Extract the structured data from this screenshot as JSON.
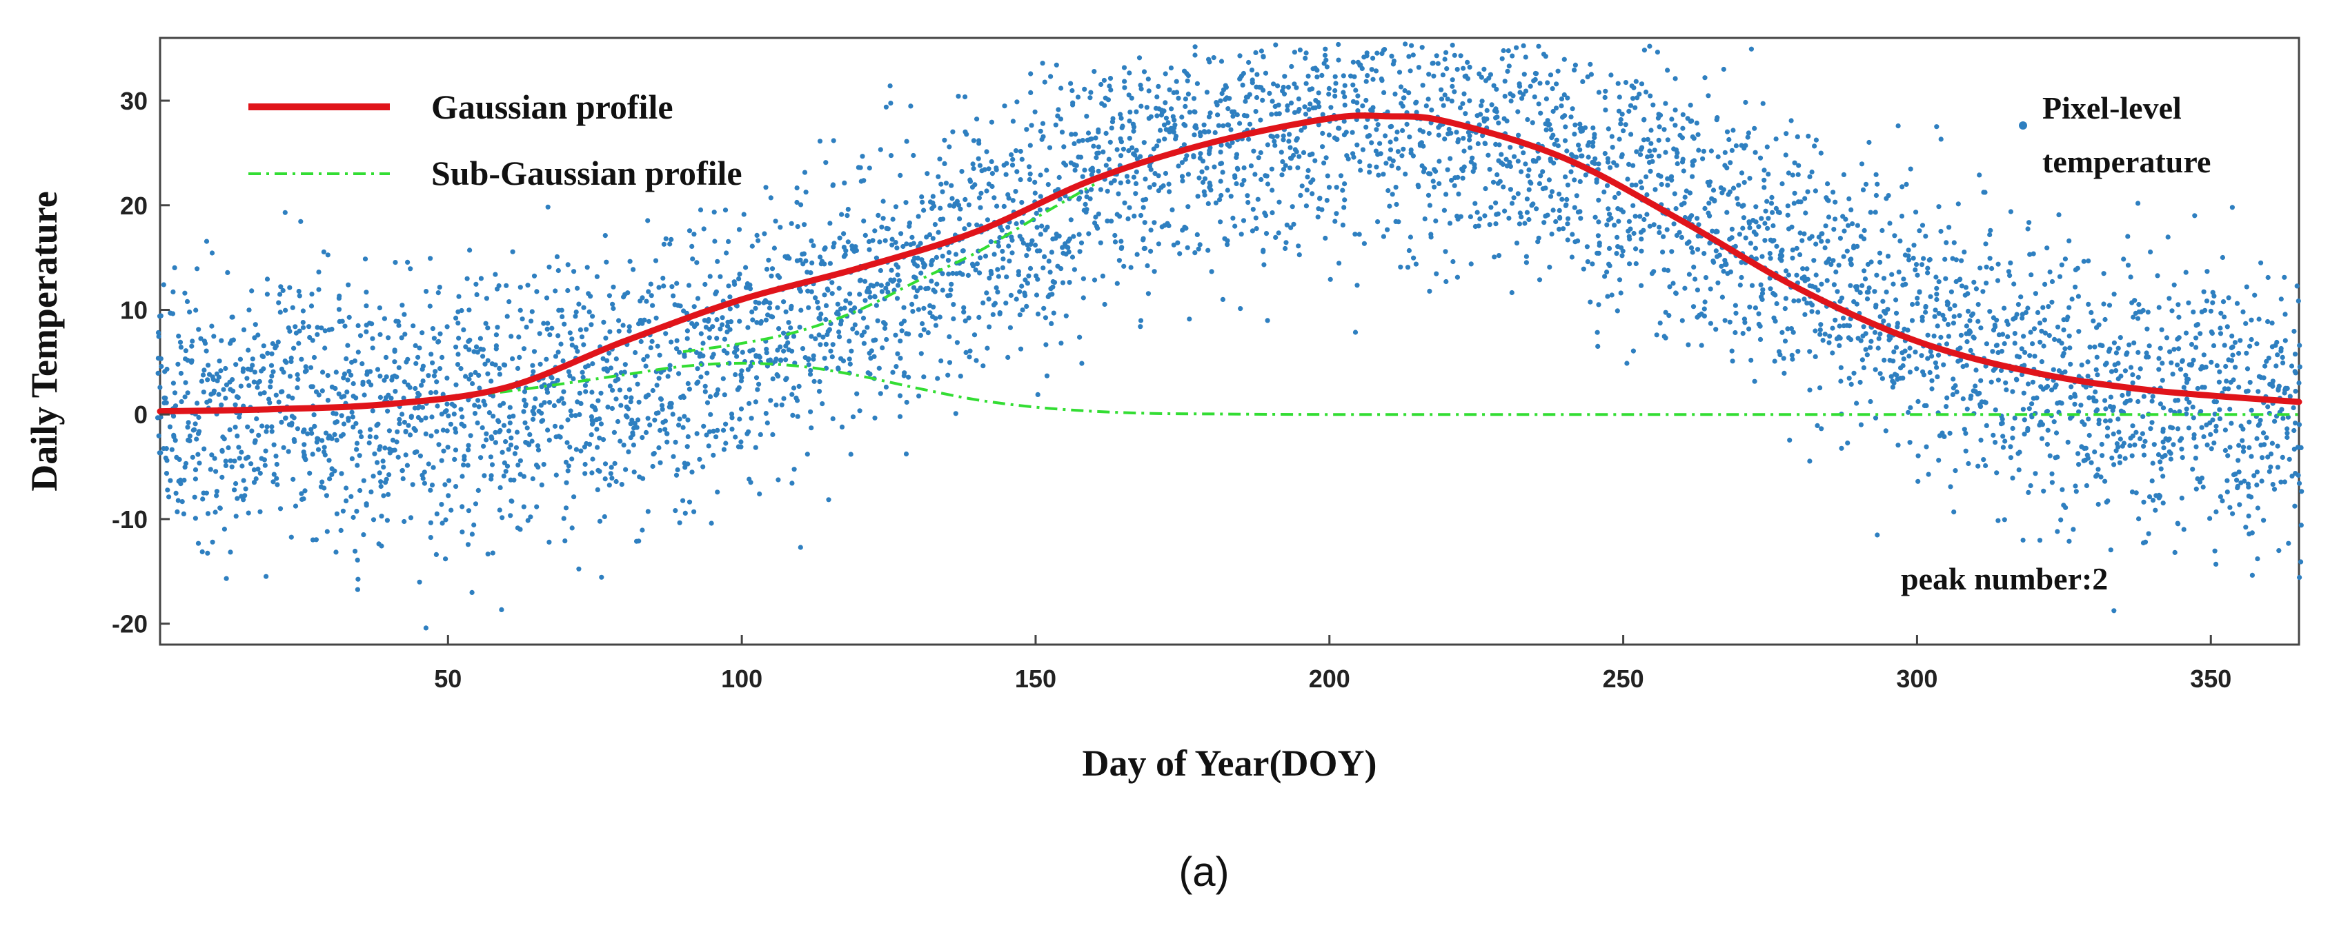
{
  "chart_data": {
    "type": "scatter",
    "title": "",
    "xlabel": "Day of Year(DOY)",
    "ylabel": "Daily Temperature",
    "xlim": [
      1,
      365
    ],
    "ylim": [
      -22,
      36
    ],
    "xticks": [
      50,
      100,
      150,
      200,
      250,
      300,
      350
    ],
    "yticks": [
      -20,
      -10,
      0,
      10,
      20,
      30
    ],
    "grid": false,
    "legend": {
      "placement": "top-left",
      "entries": [
        "Gaussian profile",
        "Sub-Gaussian profile"
      ]
    },
    "annotations": {
      "scatter_label_line1": "Pixel-level",
      "scatter_label_line2": "temperature",
      "peak_text": "peak number:2"
    },
    "caption": "(a)",
    "series": [
      {
        "name": "Pixel-level temperature",
        "kind": "scatter",
        "color": "#2e7fc0",
        "trend": {
          "type": "seasonal",
          "min": 0.5,
          "amp": 28.3,
          "peak_doy": 205,
          "spread": 10
        },
        "points_per_day": 14
      },
      {
        "name": "Gaussian profile",
        "kind": "line",
        "color": "#e0141a",
        "x": [
          1,
          20,
          40,
          60,
          80,
          100,
          120,
          140,
          160,
          180,
          200,
          210,
          220,
          240,
          260,
          280,
          300,
          320,
          340,
          365
        ],
        "values": [
          0.3,
          0.5,
          1.0,
          2.6,
          7.0,
          11.0,
          14.0,
          17.5,
          22.5,
          26.0,
          28.3,
          28.5,
          28.0,
          24.5,
          18.5,
          12.0,
          7.0,
          4.0,
          2.3,
          1.2
        ]
      },
      {
        "name": "Sub-Gaussian profile",
        "kind": "dashdot",
        "color": "#33dd33",
        "x": [
          1,
          20,
          40,
          60,
          80,
          90,
          100,
          110,
          120,
          130,
          140,
          150,
          160,
          170,
          180,
          200,
          250,
          300,
          365
        ],
        "values": [
          0.2,
          0.4,
          1.0,
          2.2,
          3.8,
          4.6,
          4.9,
          4.6,
          3.7,
          2.5,
          1.4,
          0.7,
          0.3,
          0.1,
          0.05,
          0,
          0,
          0,
          0
        ]
      },
      {
        "name": "Sub-Gaussian profile (second component)",
        "kind": "dashdot",
        "color": "#33dd33",
        "x": [
          90,
          100,
          110,
          120,
          130,
          140,
          150,
          160
        ],
        "values": [
          6.0,
          6.8,
          8.0,
          10.0,
          12.8,
          15.5,
          18.8,
          22.0
        ]
      }
    ]
  }
}
